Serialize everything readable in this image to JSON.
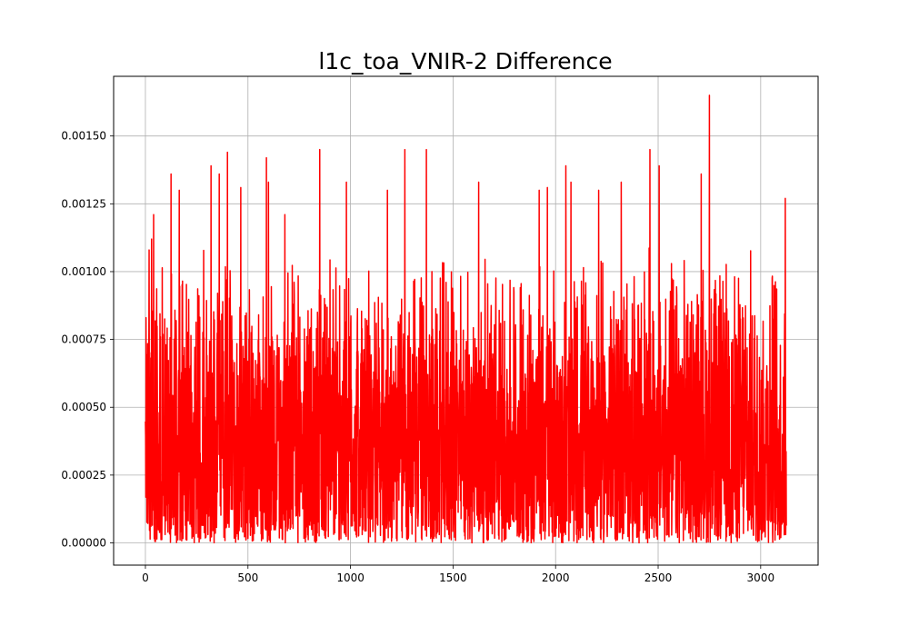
{
  "chart_data": {
    "type": "line",
    "title": "l1c_toa_VNIR-2 Difference",
    "xlabel": "",
    "ylabel": "",
    "xlim": [
      -155,
      3280
    ],
    "ylim": [
      -8.2e-05,
      0.00172
    ],
    "x_ticks": [
      {
        "value": 0,
        "label": "0"
      },
      {
        "value": 500,
        "label": "500"
      },
      {
        "value": 1000,
        "label": "1000"
      },
      {
        "value": 1500,
        "label": "1500"
      },
      {
        "value": 2000,
        "label": "2000"
      },
      {
        "value": 2500,
        "label": "2500"
      },
      {
        "value": 3000,
        "label": "3000"
      }
    ],
    "y_ticks": [
      {
        "value": 0.0,
        "label": "0.00000"
      },
      {
        "value": 0.00025,
        "label": "0.00025"
      },
      {
        "value": 0.0005,
        "label": "0.00050"
      },
      {
        "value": 0.00075,
        "label": "0.00075"
      },
      {
        "value": 0.001,
        "label": "0.00100"
      },
      {
        "value": 0.00125,
        "label": "0.00125"
      },
      {
        "value": 0.0015,
        "label": "0.00150"
      }
    ],
    "grid": true,
    "legend": "none",
    "series": [
      {
        "color": "#ff0000",
        "x_start": 0,
        "x_end": 3125,
        "n_points": 3126,
        "peaks": [
          {
            "x": 30,
            "y": 0.00112
          },
          {
            "x": 40,
            "y": 0.00121
          },
          {
            "x": 125,
            "y": 0.00136
          },
          {
            "x": 165,
            "y": 0.0013
          },
          {
            "x": 320,
            "y": 0.00139
          },
          {
            "x": 360,
            "y": 0.00136
          },
          {
            "x": 400,
            "y": 0.00144
          },
          {
            "x": 465,
            "y": 0.00131
          },
          {
            "x": 590,
            "y": 0.00142
          },
          {
            "x": 600,
            "y": 0.00133
          },
          {
            "x": 680,
            "y": 0.00121
          },
          {
            "x": 850,
            "y": 0.00145
          },
          {
            "x": 980,
            "y": 0.00133
          },
          {
            "x": 1180,
            "y": 0.0013
          },
          {
            "x": 1265,
            "y": 0.00145
          },
          {
            "x": 1370,
            "y": 0.00145
          },
          {
            "x": 1625,
            "y": 0.00133
          },
          {
            "x": 1920,
            "y": 0.0013
          },
          {
            "x": 1960,
            "y": 0.00131
          },
          {
            "x": 2050,
            "y": 0.00139
          },
          {
            "x": 2075,
            "y": 0.00133
          },
          {
            "x": 2210,
            "y": 0.0013
          },
          {
            "x": 2320,
            "y": 0.00133
          },
          {
            "x": 2460,
            "y": 0.00145
          },
          {
            "x": 2505,
            "y": 0.00139
          },
          {
            "x": 2710,
            "y": 0.00136
          },
          {
            "x": 2750,
            "y": 0.00165
          },
          {
            "x": 3120,
            "y": 0.00127
          }
        ],
        "typical_min": 0.0,
        "typical_max": 0.0011
      }
    ]
  }
}
